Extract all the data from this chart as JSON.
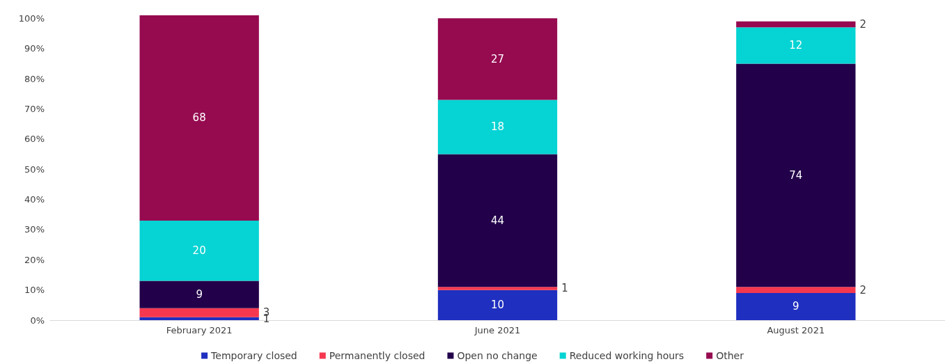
{
  "chart_data": {
    "type": "bar",
    "stacked": true,
    "categories": [
      "February 2021",
      "June 2021",
      "August 2021"
    ],
    "series": [
      {
        "name": "Temporary closed",
        "color": "#1f2fbf",
        "values": [
          1,
          10,
          9
        ]
      },
      {
        "name": "Permanently closed",
        "color": "#f5384f",
        "values": [
          3,
          1,
          2
        ]
      },
      {
        "name": "Open no change",
        "color": "#22004a",
        "values": [
          9,
          44,
          74
        ]
      },
      {
        "name": "Reduced working hours",
        "color": "#06d3d3",
        "values": [
          20,
          18,
          12
        ]
      },
      {
        "name": "Other",
        "color": "#960a50",
        "values": [
          68,
          27,
          2
        ]
      }
    ],
    "ylim": [
      0,
      101
    ],
    "yticks": [
      {
        "value": 0,
        "label": "0%"
      },
      {
        "value": 10,
        "label": "10%"
      },
      {
        "value": 20,
        "label": "20%"
      },
      {
        "value": 30,
        "label": "30%"
      },
      {
        "value": 40,
        "label": "40%"
      },
      {
        "value": 50,
        "label": "50%"
      },
      {
        "value": 60,
        "label": "60%"
      },
      {
        "value": 70,
        "label": "70%"
      },
      {
        "value": 80,
        "label": "80%"
      },
      {
        "value": 90,
        "label": "90%"
      },
      {
        "value": 100,
        "label": "100%"
      }
    ],
    "data_labels": true,
    "grid": false,
    "legend": "bottom"
  }
}
